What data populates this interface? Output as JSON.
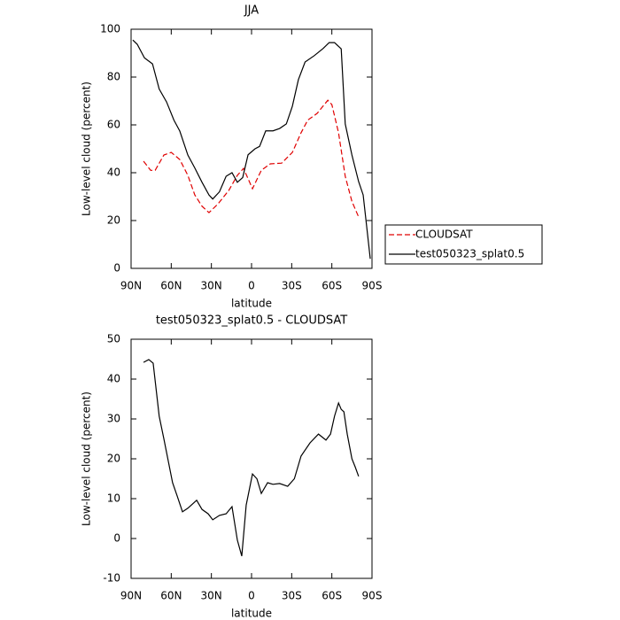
{
  "chart_data": [
    {
      "type": "line",
      "title": "JJA",
      "xlabel": "latitude",
      "ylabel": "Low-level cloud (percent)",
      "xlim": [
        90,
        -90
      ],
      "ylim": [
        0,
        100
      ],
      "xticks": [
        {
          "value": 90,
          "label": "90N"
        },
        {
          "value": 60,
          "label": "60N"
        },
        {
          "value": 30,
          "label": "30N"
        },
        0,
        {
          "value": -30,
          "label": "30S"
        },
        {
          "value": -60,
          "label": "60S"
        },
        {
          "value": -90,
          "label": "90S"
        }
      ],
      "yticks": [
        0,
        20,
        40,
        60,
        80,
        100
      ],
      "legend": "outside right",
      "series": [
        {
          "name": "CLOUDSAT",
          "color": "#e00000",
          "dash": true,
          "x": [
            80.7,
            75.4,
            72,
            65.5,
            60,
            53.6,
            47.6,
            42.4,
            37,
            31.8,
            25,
            17,
            10.6,
            6,
            -0.7,
            -7.3,
            -14,
            -22.5,
            -30.5,
            -37,
            -42,
            -49,
            -57,
            -60,
            -65,
            -70,
            -75,
            -80
          ],
          "values": [
            44.8,
            41,
            41,
            47.4,
            48.5,
            45.5,
            38.9,
            30.7,
            26,
            23.3,
            27,
            32.6,
            38.9,
            41.8,
            33.3,
            41,
            43.7,
            44,
            48.5,
            56.7,
            62,
            64.8,
            70.3,
            68.5,
            56.7,
            38.5,
            28,
            21.5
          ]
        },
        {
          "name": "test050323_splat0.5",
          "color": "#000000",
          "dash": false,
          "x": [
            88.7,
            85.4,
            80,
            74,
            69,
            63.5,
            58,
            53.6,
            47.6,
            42.4,
            37,
            31.8,
            29,
            24,
            19,
            14.6,
            10.6,
            6.6,
            2.6,
            -2.6,
            -6,
            -10.6,
            -16,
            -21,
            -26,
            -30.5,
            -35,
            -40,
            -47,
            -53.6,
            -58,
            -62,
            -67,
            -70,
            -75,
            -80,
            -83.4,
            -88.7
          ],
          "values": [
            95.5,
            93.7,
            88,
            85.5,
            75,
            69.6,
            62,
            57.4,
            47.4,
            42,
            36,
            30.7,
            29,
            32,
            38.5,
            40,
            36,
            38,
            47.5,
            50,
            51,
            57.5,
            57.5,
            58.5,
            60.4,
            67.8,
            78.9,
            86.3,
            89,
            92,
            94.4,
            94.4,
            91.8,
            60.4,
            47.4,
            36.3,
            30.7,
            4
          ]
        }
      ]
    },
    {
      "type": "line",
      "title": "test050323_splat0.5 - CLOUDSAT",
      "xlabel": "latitude",
      "ylabel": "Low-level cloud (percent)",
      "xlim": [
        90,
        -90
      ],
      "ylim": [
        -10,
        50
      ],
      "xticks": [
        {
          "value": 90,
          "label": "90N"
        },
        {
          "value": 60,
          "label": "60N"
        },
        {
          "value": 30,
          "label": "30N"
        },
        0,
        {
          "value": -30,
          "label": "30S"
        },
        {
          "value": -60,
          "label": "60S"
        },
        {
          "value": -90,
          "label": "90S"
        }
      ],
      "yticks": [
        -10,
        0,
        10,
        20,
        30,
        40,
        50
      ],
      "series": [
        {
          "color": "#000000",
          "dash": false,
          "x": [
            80.7,
            76.8,
            73.5,
            69,
            65.5,
            59,
            55.6,
            51.6,
            47.6,
            41,
            37,
            32.4,
            29,
            24,
            19,
            14.6,
            10.6,
            7.3,
            4,
            -0.7,
            -4,
            -7.3,
            -12,
            -16,
            -21,
            -27,
            -32,
            -37,
            -43.7,
            -50,
            -55.6,
            -59,
            -62,
            -65,
            -67,
            -69,
            -71.5,
            -75,
            -77.4,
            -80
          ],
          "values": [
            44.2,
            44.9,
            44,
            30.7,
            25,
            14,
            10.7,
            6.7,
            7.6,
            9.6,
            7.3,
            6.2,
            4.7,
            5.8,
            6.2,
            8,
            -0.4,
            -4.4,
            8.4,
            16.2,
            15,
            11.3,
            14,
            13.6,
            13.8,
            13.1,
            15,
            20.7,
            24,
            26.2,
            24.7,
            26.2,
            30.7,
            34,
            32.4,
            31.8,
            26.2,
            20,
            18,
            15.6
          ]
        }
      ]
    }
  ]
}
